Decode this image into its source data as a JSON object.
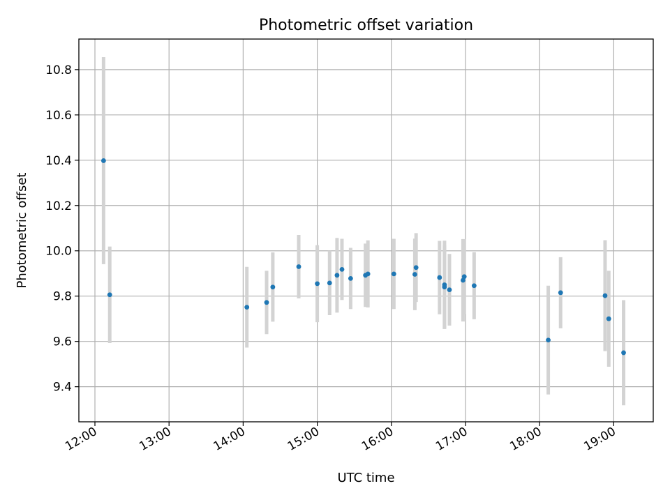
{
  "chart_data": {
    "type": "scatter",
    "title": "Photometric offset variation",
    "xlabel": "UTC time",
    "ylabel": "Photometric offset",
    "xlim": [
      "11:47",
      "19:32"
    ],
    "ylim": [
      9.245,
      10.935
    ],
    "x_ticks": [
      "12:00",
      "13:00",
      "14:00",
      "15:00",
      "16:00",
      "17:00",
      "18:00",
      "19:00"
    ],
    "y_ticks": [
      9.4,
      9.6,
      9.8,
      10.0,
      10.2,
      10.4,
      10.6,
      10.8
    ],
    "grid": true,
    "marker_color": "#1f77b4",
    "errorbar_color": "#d3d3d3",
    "points": [
      {
        "time": "12:07",
        "y": 10.398,
        "err": 0.457
      },
      {
        "time": "12:12",
        "y": 9.806,
        "err": 0.213
      },
      {
        "time": "14:03",
        "y": 9.751,
        "err": 0.178
      },
      {
        "time": "14:19",
        "y": 9.772,
        "err": 0.14
      },
      {
        "time": "14:24",
        "y": 9.84,
        "err": 0.153
      },
      {
        "time": "14:45",
        "y": 9.93,
        "err": 0.14
      },
      {
        "time": "15:00",
        "y": 9.855,
        "err": 0.17
      },
      {
        "time": "15:10",
        "y": 9.858,
        "err": 0.142
      },
      {
        "time": "15:16",
        "y": 9.892,
        "err": 0.165
      },
      {
        "time": "15:20",
        "y": 9.918,
        "err": 0.135
      },
      {
        "time": "15:27",
        "y": 9.878,
        "err": 0.135
      },
      {
        "time": "15:39",
        "y": 9.892,
        "err": 0.14
      },
      {
        "time": "15:41",
        "y": 9.898,
        "err": 0.148
      },
      {
        "time": "16:02",
        "y": 9.898,
        "err": 0.155
      },
      {
        "time": "16:19",
        "y": 9.896,
        "err": 0.158
      },
      {
        "time": "16:20",
        "y": 9.926,
        "err": 0.152
      },
      {
        "time": "16:39",
        "y": 9.882,
        "err": 0.162
      },
      {
        "time": "16:43",
        "y": 9.85,
        "err": 0.195
      },
      {
        "time": "16:43",
        "y": 9.84,
        "err": 0.185
      },
      {
        "time": "16:47",
        "y": 9.828,
        "err": 0.158
      },
      {
        "time": "16:58",
        "y": 9.87,
        "err": 0.182
      },
      {
        "time": "16:59",
        "y": 9.886,
        "err": 0.165
      },
      {
        "time": "17:07",
        "y": 9.846,
        "err": 0.148
      },
      {
        "time": "18:07",
        "y": 9.606,
        "err": 0.24
      },
      {
        "time": "18:17",
        "y": 9.815,
        "err": 0.157
      },
      {
        "time": "18:53",
        "y": 9.802,
        "err": 0.245
      },
      {
        "time": "18:56",
        "y": 9.7,
        "err": 0.212
      },
      {
        "time": "19:08",
        "y": 9.55,
        "err": 0.232
      }
    ]
  }
}
